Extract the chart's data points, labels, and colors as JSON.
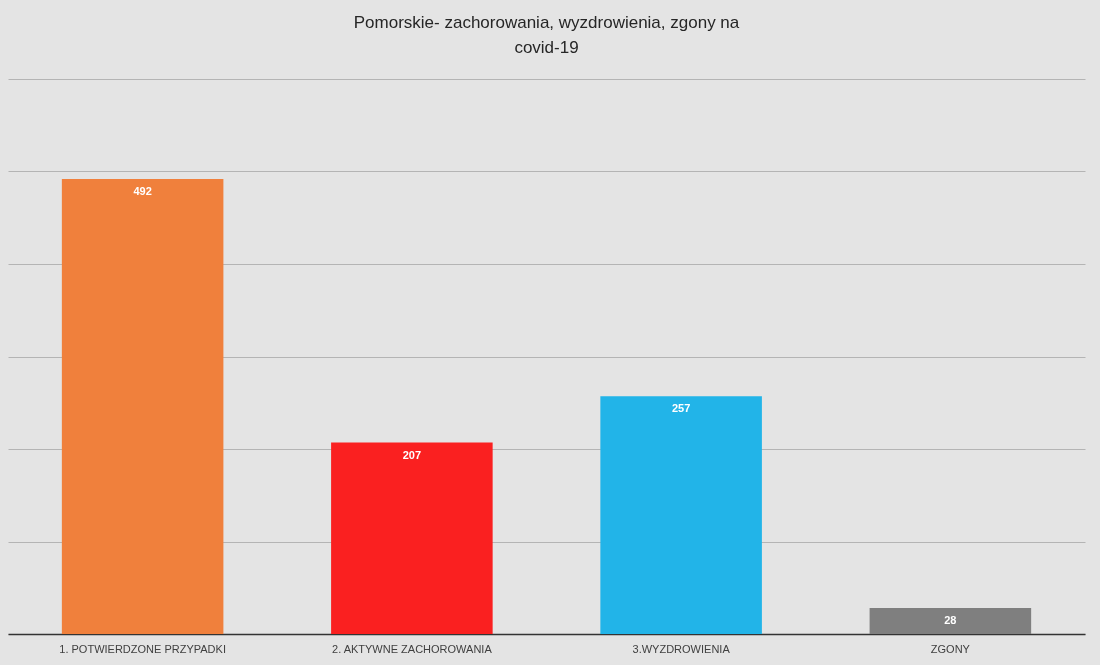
{
  "chart_data": {
    "type": "bar",
    "title": "Pomorskie- zachorowania, wyzdrowienia, zgony na covid-19",
    "categories": [
      "1. POTWIERDZONE PRZYPADKI",
      "2. AKTYWNE ZACHOROWANIA",
      "3.WYZDROWIENIA",
      "ZGONY"
    ],
    "values": [
      492,
      207,
      257,
      28
    ],
    "colors": [
      "#f0803c",
      "#fa2020",
      "#22b4e8",
      "#7f7f7f"
    ],
    "ylim": [
      0,
      600
    ],
    "yticks": [
      {
        "value": 0,
        "label": null
      },
      {
        "value": 100,
        "label": null
      },
      {
        "value": 200,
        "label": null
      },
      {
        "value": 300,
        "label": null
      },
      {
        "value": 400,
        "label": null
      },
      {
        "value": 500,
        "label": null
      },
      {
        "value": 600,
        "label": null
      }
    ],
    "tick_labels": "x",
    "grid": "y",
    "data_labels": true
  }
}
